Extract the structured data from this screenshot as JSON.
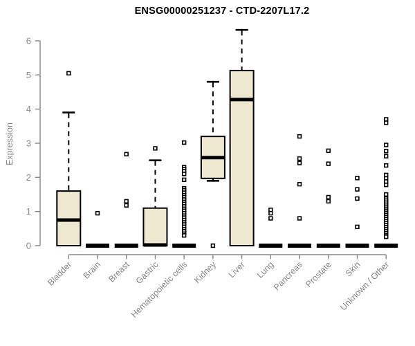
{
  "chart_data": {
    "type": "boxplot",
    "title": "ENSG00000251237 - CTD-2207L17.2",
    "ylabel": "Expression",
    "xlabel": "",
    "ylim": [
      0,
      6.5
    ],
    "yticks": [
      0,
      1,
      2,
      3,
      4,
      5,
      6
    ],
    "grid": false,
    "legend": "none",
    "colors": {
      "box_fill": "#EDE8CF",
      "box_stroke": "#000000",
      "axis": "#878787",
      "title": "#000000",
      "background": "#FFFFFF"
    },
    "categories": [
      "Bladder",
      "Brain",
      "Breast",
      "Gastric",
      "Hematopoietic cells",
      "Kidney",
      "Liver",
      "Lung",
      "Pancreas",
      "Prostate",
      "Skin",
      "Unknown / Other"
    ],
    "boxes": [
      {
        "category": "Bladder",
        "whisker_low": 0,
        "q1": 0,
        "median": 0.75,
        "q3": 1.6,
        "whisker_high": 3.9,
        "outliers": [
          5.05
        ]
      },
      {
        "category": "Brain",
        "whisker_low": 0,
        "q1": 0,
        "median": 0,
        "q3": 0,
        "whisker_high": 0,
        "outliers": [
          0.95
        ]
      },
      {
        "category": "Breast",
        "whisker_low": 0,
        "q1": 0,
        "median": 0,
        "q3": 0,
        "whisker_high": 0,
        "outliers": [
          2.68,
          1.3,
          1.18
        ]
      },
      {
        "category": "Gastric",
        "whisker_low": 0,
        "q1": 0,
        "median": 0.02,
        "q3": 1.1,
        "whisker_high": 2.5,
        "outliers": [
          2.85
        ]
      },
      {
        "category": "Hematopoietic cells",
        "whisker_low": 0,
        "q1": 0,
        "median": 0,
        "q3": 0,
        "whisker_high": 0,
        "outliers": [
          3.02,
          2.3,
          2.24,
          2.18,
          2.1,
          1.93,
          1.68,
          1.62,
          1.55,
          1.48,
          1.42,
          1.35,
          1.28,
          1.22,
          1.15,
          1.08,
          1.02,
          0.95,
          0.88,
          0.82,
          0.75,
          0.68,
          0.62,
          0.55,
          0.48,
          0.42,
          0.35,
          0.3
        ]
      },
      {
        "category": "Kidney",
        "whisker_low": 1.9,
        "q1": 1.97,
        "median": 2.58,
        "q3": 3.2,
        "whisker_high": 4.8,
        "outliers": [
          0
        ]
      },
      {
        "category": "Liver",
        "whisker_low": 0,
        "q1": 0,
        "median": 4.28,
        "q3": 5.13,
        "whisker_high": 6.32,
        "outliers": []
      },
      {
        "category": "Lung",
        "whisker_low": 0,
        "q1": 0,
        "median": 0,
        "q3": 0,
        "whisker_high": 0,
        "outliers": [
          1.05,
          0.95,
          0.8
        ]
      },
      {
        "category": "Pancreas",
        "whisker_low": 0,
        "q1": 0,
        "median": 0,
        "q3": 0,
        "whisker_high": 0,
        "outliers": [
          3.2,
          2.55,
          2.42,
          1.8,
          0.8
        ]
      },
      {
        "category": "Prostate",
        "whisker_low": 0,
        "q1": 0,
        "median": 0,
        "q3": 0,
        "whisker_high": 0,
        "outliers": [
          2.78,
          2.4,
          1.42,
          1.3
        ]
      },
      {
        "category": "Skin",
        "whisker_low": 0,
        "q1": 0,
        "median": 0,
        "q3": 0,
        "whisker_high": 0,
        "outliers": [
          1.98,
          1.65,
          1.38,
          0.55
        ]
      },
      {
        "category": "Unknown / Other",
        "whisker_low": 0,
        "q1": 0,
        "median": 0,
        "q3": 0,
        "whisker_high": 0,
        "outliers": [
          3.7,
          3.6,
          2.95,
          2.77,
          2.62,
          2.35,
          2.07,
          1.97,
          1.88,
          1.78,
          1.5,
          1.38,
          1.32,
          1.26,
          1.2,
          1.14,
          1.08,
          1.02,
          0.96,
          0.9,
          0.84,
          0.78,
          0.72,
          0.66,
          0.6,
          0.54,
          0.48,
          0.42,
          0.36,
          0.3,
          0.26
        ]
      }
    ]
  }
}
